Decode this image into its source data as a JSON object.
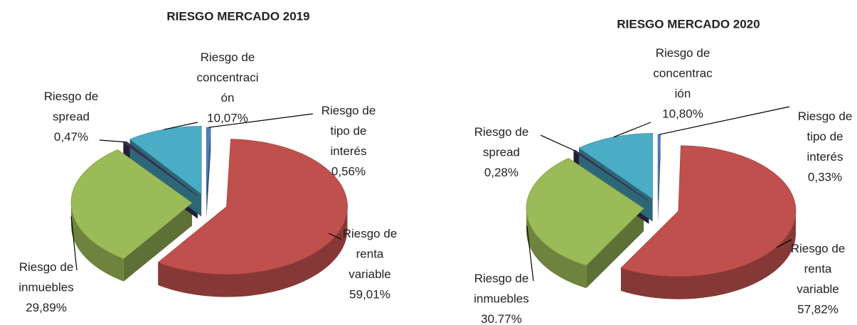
{
  "chart_data": [
    {
      "type": "pie",
      "title": "RIESGO MERCADO 2019",
      "categories": [
        "Riesgo de tipo de interés",
        "Riesgo de renta variable",
        "Riesgo de inmuebles",
        "Riesgo de spread",
        "Riesgo de concentración"
      ],
      "values": [
        0.56,
        59.01,
        29.89,
        0.47,
        10.07
      ],
      "value_labels": [
        "0,56%",
        "59,01%",
        "29,89%",
        "0,47%",
        "10,07%"
      ],
      "colors": [
        "#4f81bd",
        "#c0504d",
        "#9bbb59",
        "#3d3358",
        "#4bacc6"
      ]
    },
    {
      "type": "pie",
      "title": "RIESGO MERCADO 2020",
      "categories": [
        "Riesgo de tipo de interés",
        "Riesgo de renta variable",
        "Riesgo de inmuebles",
        "Riesgo de spread",
        "Riesgo de concentración"
      ],
      "values": [
        0.33,
        57.82,
        30.77,
        0.28,
        10.8
      ],
      "value_labels": [
        "0,33%",
        "57,82%",
        "30.77%",
        "0,28%",
        "10,80%"
      ],
      "colors": [
        "#4f81bd",
        "#c0504d",
        "#9bbb59",
        "#3d3358",
        "#4bacc6"
      ]
    }
  ]
}
